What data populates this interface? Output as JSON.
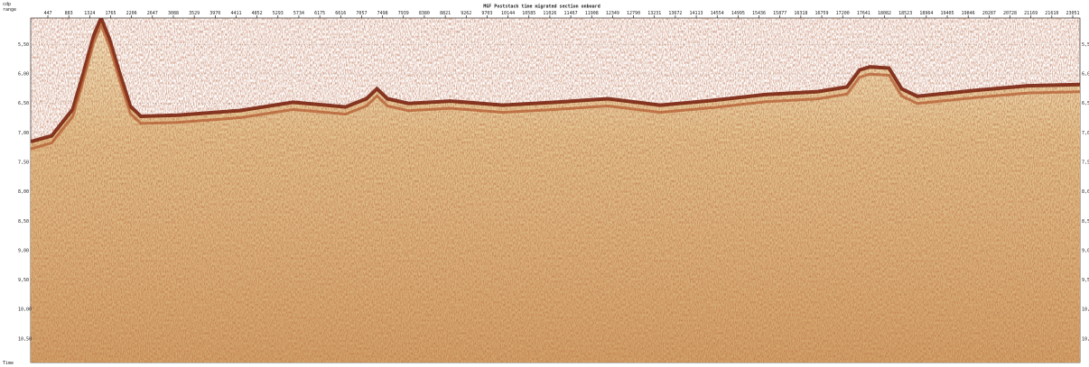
{
  "title": "MGF Poststack time migrated section onboard",
  "corner_label": [
    "cdp",
    "range"
  ],
  "bottom_label": "Time",
  "colors": {
    "background": "#ffffff",
    "seismic_fill": "#d8b47a",
    "seismic_dark": "#7a2410",
    "seismic_light": "#f4e8c4",
    "gridline": "#b0b0b0",
    "frame": "#000000"
  },
  "chart_data": {
    "type": "heatmap",
    "title": "MGF Poststack time migrated section onboard",
    "xlabel": "cdp",
    "ylabel": "Time",
    "x_tick_labels": [
      "447",
      "883",
      "1324",
      "1765",
      "2206",
      "2647",
      "3088",
      "3529",
      "3970",
      "4411",
      "4852",
      "5293",
      "5734",
      "6175",
      "6616",
      "7057",
      "7498",
      "7939",
      "8380",
      "8821",
      "9262",
      "9703",
      "10144",
      "10585",
      "11026",
      "11467",
      "11908",
      "12349",
      "12790",
      "13231",
      "13672",
      "14113",
      "14554",
      "14995",
      "15436",
      "15877",
      "16318",
      "16759",
      "17200",
      "17641",
      "18082",
      "18523",
      "18964",
      "19405",
      "19846",
      "20287",
      "20728",
      "21169",
      "21610",
      "23051"
    ],
    "y_ticks": [
      5.5,
      6.0,
      6.5,
      7.0,
      7.5,
      8.0,
      8.5,
      9.0,
      9.5,
      10.0,
      10.5
    ],
    "y_tick_labels": [
      "5,50",
      "6,00",
      "6,50",
      "7,00",
      "7,50",
      "8,00",
      "8,50",
      "9,00",
      "9,50",
      "10,00",
      "10,50"
    ],
    "ylim": [
      5.05,
      10.9
    ],
    "xlim": [
      0,
      1
    ],
    "y_axis_inverted": true,
    "grid": true,
    "seafloor_profile": [
      [
        0.0,
        7.15
      ],
      [
        0.02,
        7.05
      ],
      [
        0.04,
        6.6
      ],
      [
        0.05,
        6.0
      ],
      [
        0.06,
        5.35
      ],
      [
        0.067,
        5.05
      ],
      [
        0.075,
        5.4
      ],
      [
        0.085,
        6.0
      ],
      [
        0.095,
        6.55
      ],
      [
        0.105,
        6.72
      ],
      [
        0.14,
        6.7
      ],
      [
        0.2,
        6.62
      ],
      [
        0.25,
        6.48
      ],
      [
        0.3,
        6.56
      ],
      [
        0.32,
        6.42
      ],
      [
        0.33,
        6.25
      ],
      [
        0.34,
        6.42
      ],
      [
        0.36,
        6.5
      ],
      [
        0.4,
        6.46
      ],
      [
        0.45,
        6.53
      ],
      [
        0.5,
        6.48
      ],
      [
        0.55,
        6.42
      ],
      [
        0.6,
        6.53
      ],
      [
        0.65,
        6.45
      ],
      [
        0.7,
        6.35
      ],
      [
        0.75,
        6.3
      ],
      [
        0.778,
        6.22
      ],
      [
        0.79,
        5.93
      ],
      [
        0.8,
        5.88
      ],
      [
        0.818,
        5.9
      ],
      [
        0.83,
        6.25
      ],
      [
        0.845,
        6.38
      ],
      [
        0.9,
        6.28
      ],
      [
        0.95,
        6.2
      ],
      [
        1.0,
        6.18
      ]
    ]
  }
}
